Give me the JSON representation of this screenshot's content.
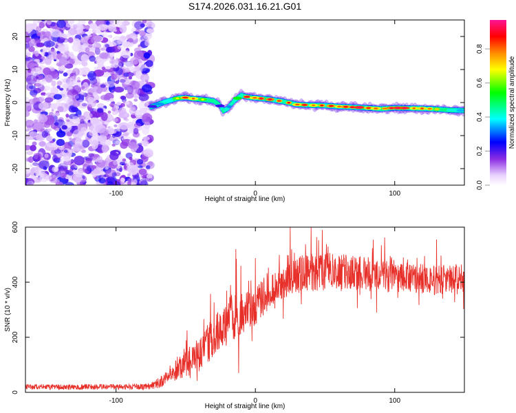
{
  "title": "S174.2026.031.16.21.G01",
  "chart_data": [
    {
      "type": "heatmap",
      "title": "S174.2026.031.16.21.G01",
      "xlabel": "Height of straight line (km)",
      "ylabel": "Frequency (Hz)",
      "xlim": [
        -165,
        150
      ],
      "ylim": [
        -25,
        25
      ],
      "xticks": [
        "-100",
        "0",
        "100"
      ],
      "xtick_values": [
        -100,
        0,
        100
      ],
      "yticks": [
        "20",
        "10",
        "0",
        "-10",
        "-20"
      ],
      "ytick_values": [
        20,
        10,
        0,
        -10,
        -20
      ],
      "noise_region_x": [
        -165,
        -75
      ],
      "ridge": {
        "x": [
          -75,
          -70,
          -65,
          -60,
          -55,
          -50,
          -45,
          -40,
          -35,
          -30,
          -26,
          -23,
          -20,
          -17,
          -15,
          -12,
          -10,
          -5,
          0,
          10,
          20,
          30,
          40,
          50,
          60,
          70,
          80,
          90,
          100,
          110,
          120,
          130,
          140,
          150
        ],
        "y": [
          -1.3,
          -0.6,
          0.2,
          0.8,
          1.4,
          1.5,
          1.2,
          1.0,
          0.8,
          0.5,
          -0.6,
          -2.5,
          -1.8,
          -0.3,
          0.6,
          1.6,
          2.2,
          1.6,
          1.4,
          1.0,
          0.3,
          -0.6,
          -0.8,
          -0.9,
          -1.2,
          -1.4,
          -1.6,
          -1.9,
          -1.6,
          -1.7,
          -1.8,
          -2.0,
          -2.3,
          -2.4
        ],
        "amplitude": [
          0.2,
          0.35,
          0.45,
          0.55,
          0.7,
          0.8,
          0.9,
          0.7,
          0.6,
          0.45,
          0.3,
          0.2,
          0.3,
          0.5,
          0.6,
          0.75,
          0.85,
          0.9,
          0.85,
          0.9,
          0.95,
          0.9,
          0.85,
          0.8,
          0.85,
          0.95,
          0.9,
          0.85,
          0.9,
          0.95,
          0.85,
          0.7,
          0.5,
          0.4
        ]
      },
      "colorbar": {
        "label": "Normalized spectral amplitude",
        "range": [
          0.0,
          0.97
        ],
        "ticks": [
          "0.0",
          "0.2",
          "0.4",
          "0.6",
          "0.8"
        ],
        "tick_values": [
          0.0,
          0.2,
          0.4,
          0.6,
          0.8
        ],
        "colors": [
          "#ffffff",
          "#8a2be2",
          "#0000ff",
          "#00ffff",
          "#00ff00",
          "#ffff00",
          "#ff8c00",
          "#ff0000",
          "#ff1493"
        ]
      }
    },
    {
      "type": "line",
      "xlabel": "Height of straight line (km)",
      "ylabel": "SNR (10 * v/v)",
      "xlim": [
        -165,
        150
      ],
      "ylim": [
        0,
        600
      ],
      "xticks": [
        "-100",
        "0",
        "100"
      ],
      "xtick_values": [
        -100,
        0,
        100
      ],
      "yticks": [
        "0",
        "200",
        "400",
        "600"
      ],
      "ytick_values": [
        0,
        200,
        400,
        600
      ],
      "series": [
        {
          "name": "SNR",
          "color": "#e8302a",
          "x": [
            -165,
            -150,
            -130,
            -110,
            -90,
            -75,
            -68,
            -60,
            -55,
            -50,
            -45,
            -40,
            -35,
            -30,
            -25,
            -20,
            -15,
            -10,
            -5,
            0,
            5,
            10,
            15,
            20,
            25,
            30,
            40,
            50,
            60,
            70,
            80,
            90,
            100,
            110,
            120,
            130,
            140,
            150
          ],
          "values": [
            20,
            20,
            19,
            20,
            20,
            22,
            38,
            70,
            95,
            110,
            125,
            140,
            170,
            200,
            230,
            255,
            280,
            295,
            305,
            320,
            345,
            365,
            385,
            400,
            415,
            425,
            435,
            440,
            440,
            438,
            432,
            425,
            420,
            415,
            412,
            410,
            408,
            410
          ],
          "noise_amplitude": [
            10,
            10,
            10,
            10,
            10,
            12,
            20,
            35,
            45,
            55,
            60,
            65,
            70,
            75,
            80,
            85,
            90,
            85,
            80,
            75,
            70,
            65,
            60,
            60,
            65,
            70,
            70,
            70,
            65,
            65,
            65,
            60,
            60,
            55,
            55,
            55,
            55,
            55
          ],
          "spikes": [
            {
              "x": -14,
              "y": 520
            },
            {
              "x": -12,
              "y": 70
            },
            {
              "x": 25,
              "y": 600
            },
            {
              "x": 40,
              "y": 600
            },
            {
              "x": 48,
              "y": 590
            },
            {
              "x": 87,
              "y": 290
            },
            {
              "x": 130,
              "y": 555
            }
          ]
        }
      ]
    }
  ]
}
